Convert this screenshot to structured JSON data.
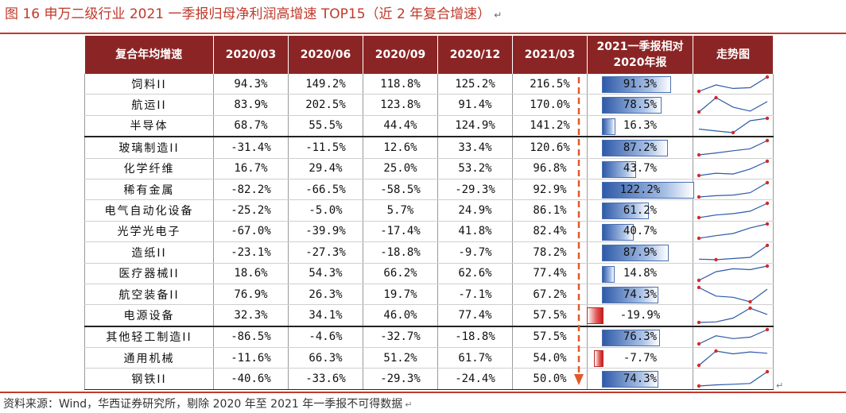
{
  "title": "图 16 申万二级行业 2021 一季报归母净利润高增速 TOP15（近 2 年复合增速）",
  "headers": [
    "复合年均增速",
    "2020/03",
    "2020/06",
    "2020/09",
    "2020/12",
    "2021/03",
    "2021一季报相对2020年报",
    "走势图"
  ],
  "rows": [
    {
      "name": "饲料II",
      "values": [
        "94.3%",
        "149.2%",
        "118.8%",
        "125.2%",
        "216.5%"
      ],
      "rel": "91.3%",
      "rel_num": 91.3,
      "spark": [
        94.3,
        149.2,
        118.8,
        125.2,
        216.5
      ]
    },
    {
      "name": "航运II",
      "values": [
        "83.9%",
        "202.5%",
        "123.8%",
        "91.4%",
        "170.0%"
      ],
      "rel": "78.5%",
      "rel_num": 78.5,
      "spark": [
        83.9,
        202.5,
        123.8,
        91.4,
        170.0
      ]
    },
    {
      "name": "半导体",
      "values": [
        "68.7%",
        "55.5%",
        "44.4%",
        "124.9%",
        "141.2%"
      ],
      "rel": "16.3%",
      "rel_num": 16.3,
      "spark": [
        68.7,
        55.5,
        44.4,
        124.9,
        141.2
      ]
    },
    {
      "name": "玻璃制造II",
      "values": [
        "-31.4%",
        "-11.5%",
        "12.6%",
        "33.4%",
        "120.6%"
      ],
      "rel": "87.2%",
      "rel_num": 87.2,
      "spark": [
        -31.4,
        -11.5,
        12.6,
        33.4,
        120.6
      ]
    },
    {
      "name": "化学纤维",
      "values": [
        "16.7%",
        "29.4%",
        "25.0%",
        "53.2%",
        "96.8%"
      ],
      "rel": "43.7%",
      "rel_num": 43.7,
      "spark": [
        16.7,
        29.4,
        25.0,
        53.2,
        96.8
      ]
    },
    {
      "name": "稀有金属",
      "values": [
        "-82.2%",
        "-66.5%",
        "-58.5%",
        "-29.3%",
        "92.9%"
      ],
      "rel": "122.2%",
      "rel_num": 122.2,
      "spark": [
        -82.2,
        -66.5,
        -58.5,
        -29.3,
        92.9
      ]
    },
    {
      "name": "电气自动化设备",
      "values": [
        "-25.2%",
        "-5.0%",
        "5.7%",
        "24.9%",
        "86.1%"
      ],
      "rel": "61.2%",
      "rel_num": 61.2,
      "spark": [
        -25.2,
        -5.0,
        5.7,
        24.9,
        86.1
      ]
    },
    {
      "name": "光学光电子",
      "values": [
        "-67.0%",
        "-39.9%",
        "-17.4%",
        "41.8%",
        "82.4%"
      ],
      "rel": "40.7%",
      "rel_num": 40.7,
      "spark": [
        -67.0,
        -39.9,
        -17.4,
        41.8,
        82.4
      ]
    },
    {
      "name": "造纸II",
      "values": [
        "-23.1%",
        "-27.3%",
        "-18.8%",
        "-9.7%",
        "78.2%"
      ],
      "rel": "87.9%",
      "rel_num": 87.9,
      "spark": [
        -23.1,
        -27.3,
        -18.8,
        -9.7,
        78.2
      ]
    },
    {
      "name": "医疗器械II",
      "values": [
        "18.6%",
        "54.3%",
        "66.2%",
        "62.6%",
        "77.4%"
      ],
      "rel": "14.8%",
      "rel_num": 14.8,
      "spark": [
        18.6,
        54.3,
        66.2,
        62.6,
        77.4
      ]
    },
    {
      "name": "航空装备II",
      "values": [
        "76.9%",
        "26.3%",
        "19.7%",
        "-7.1%",
        "67.2%"
      ],
      "rel": "74.3%",
      "rel_num": 74.3,
      "spark": [
        76.9,
        26.3,
        19.7,
        -7.1,
        67.2
      ]
    },
    {
      "name": "电源设备",
      "values": [
        "32.3%",
        "34.1%",
        "46.0%",
        "77.4%",
        "57.5%"
      ],
      "rel": "-19.9%",
      "rel_num": -19.9,
      "spark": [
        32.3,
        34.1,
        46.0,
        77.4,
        57.5
      ]
    },
    {
      "name": "其他轻工制造II",
      "values": [
        "-86.5%",
        "-4.6%",
        "-32.7%",
        "-18.8%",
        "57.5%"
      ],
      "rel": "76.3%",
      "rel_num": 76.3,
      "spark": [
        -86.5,
        -4.6,
        -32.7,
        -18.8,
        57.5
      ]
    },
    {
      "name": "通用机械",
      "values": [
        "-11.6%",
        "66.3%",
        "51.2%",
        "61.7%",
        "54.0%"
      ],
      "rel": "-7.7%",
      "rel_num": -7.7,
      "spark": [
        -11.6,
        66.3,
        51.2,
        61.7,
        54.0
      ]
    },
    {
      "name": "钢铁II",
      "values": [
        "-40.6%",
        "-33.6%",
        "-29.3%",
        "-24.4%",
        "50.0%"
      ],
      "rel": "74.3%",
      "rel_num": 74.3,
      "spark": [
        -40.6,
        -33.6,
        -29.3,
        -24.4,
        50.0
      ]
    }
  ],
  "source": "资料来源：Wind，华西证券研究所，剔除 2020 年至 2021 年一季报不可得数据",
  "colors": {
    "header_bg": "#8b2525",
    "accent_red": "#c0392b",
    "bar_blue": "#2e5aa8",
    "bar_red": "#c91a1a",
    "spark_line": "#2e5aa8",
    "spark_marker": "#d62828",
    "arrow": "#e05a2a"
  }
}
